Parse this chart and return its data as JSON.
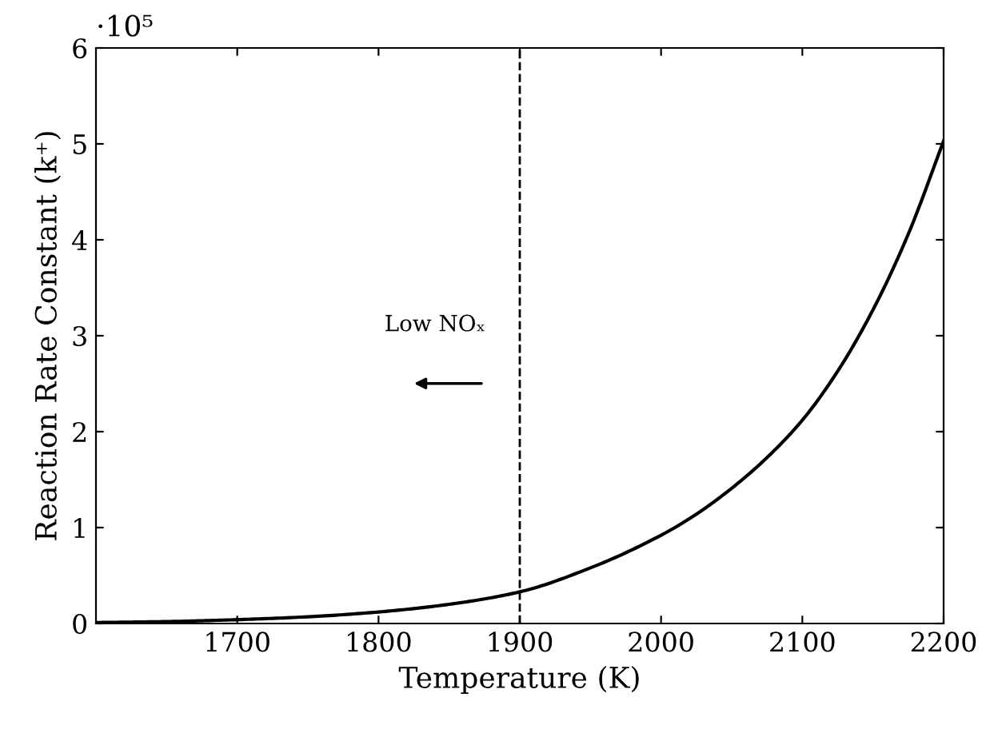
{
  "chart_data": {
    "type": "line",
    "xlabel": "Temperature (K)",
    "ylabel": "Reaction Rate Constant (k⁺)",
    "x": [
      1600,
      1650,
      1700,
      1750,
      1800,
      1850,
      1900,
      1950,
      2000,
      2025,
      2050,
      2075,
      2100,
      2125,
      2150,
      2175,
      2200
    ],
    "series": [
      {
        "color": "#000000",
        "values": [
          0.01,
          0.02,
          0.04,
          0.07,
          0.12,
          0.2,
          0.33,
          0.58,
          0.92,
          1.14,
          1.41,
          1.73,
          2.12,
          2.63,
          3.27,
          4.06,
          5.03
        ]
      }
    ],
    "xlim": [
      1600,
      2200
    ],
    "xticks": [
      1700,
      1800,
      1900,
      2000,
      2100,
      2200
    ],
    "ylim": [
      0,
      6
    ],
    "yticks": [
      0,
      1,
      2,
      3,
      4,
      5,
      6
    ],
    "ref_lines": [
      {
        "axis": "x",
        "value": 1900,
        "label": null,
        "color": "#000000",
        "line_style": "dashed"
      }
    ],
    "annotations": [
      "·10⁵",
      "Low NOₓ"
    ],
    "grid": false,
    "legend": false
  }
}
